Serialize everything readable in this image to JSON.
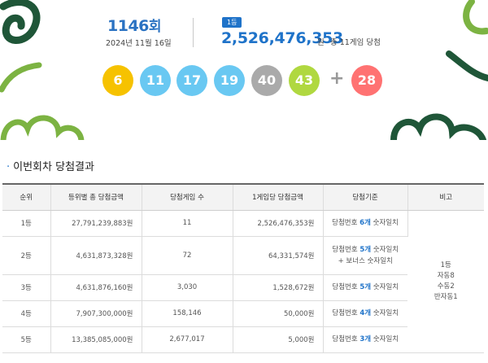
{
  "draw": {
    "number": "1146",
    "suffix": "회",
    "date": "2024년 11월 16일"
  },
  "top_prize": {
    "rank_badge": "1등",
    "amount": "2,526,476,353",
    "unit": "원",
    "winners": "총 11게임 당첨"
  },
  "balls": [
    {
      "number": "6",
      "color": "#f6c200"
    },
    {
      "number": "11",
      "color": "#69c8f2"
    },
    {
      "number": "17",
      "color": "#69c8f2"
    },
    {
      "number": "19",
      "color": "#69c8f2"
    },
    {
      "number": "40",
      "color": "#aaaaaa"
    },
    {
      "number": "43",
      "color": "#b0d840"
    }
  ],
  "bonus": {
    "plus": "+",
    "number": "28",
    "color": "#ff7272"
  },
  "decor_colors": {
    "dark_green": "#1f5638",
    "green": "#7cb342"
  },
  "section_title": "이번회차 당첨결과",
  "table": {
    "headers": [
      "순위",
      "등위별 총 당첨금액",
      "당첨게임 수",
      "1게임당 당첨금액",
      "당첨기준",
      "비고"
    ],
    "rows": [
      {
        "rank": "1등",
        "total": "27,791,239,883원",
        "games": "11",
        "per_game": "2,526,476,353원",
        "crit_pre": "당첨번호 ",
        "crit_num": "6개",
        "crit_post": " 숫자일치",
        "crit_line2": ""
      },
      {
        "rank": "2등",
        "total": "4,631,873,328원",
        "games": "72",
        "per_game": "64,331,574원",
        "crit_pre": "당첨번호 ",
        "crit_num": "5개",
        "crit_post": " 숫자일치",
        "crit_line2": "+ 보너스 숫자일치"
      },
      {
        "rank": "3등",
        "total": "4,631,876,160원",
        "games": "3,030",
        "per_game": "1,528,672원",
        "crit_pre": "당첨번호 ",
        "crit_num": "5개",
        "crit_post": " 숫자일치",
        "crit_line2": ""
      },
      {
        "rank": "4등",
        "total": "7,907,300,000원",
        "games": "158,146",
        "per_game": "50,000원",
        "crit_pre": "당첨번호 ",
        "crit_num": "4개",
        "crit_post": " 숫자일치",
        "crit_line2": ""
      },
      {
        "rank": "5등",
        "total": "13,385,085,000원",
        "games": "2,677,017",
        "per_game": "5,000원",
        "crit_pre": "당첨번호 ",
        "crit_num": "3개",
        "crit_post": " 숫자일치",
        "crit_line2": ""
      }
    ],
    "note_lines": [
      "1등",
      "자동8",
      "수동2",
      "반자동1"
    ]
  }
}
